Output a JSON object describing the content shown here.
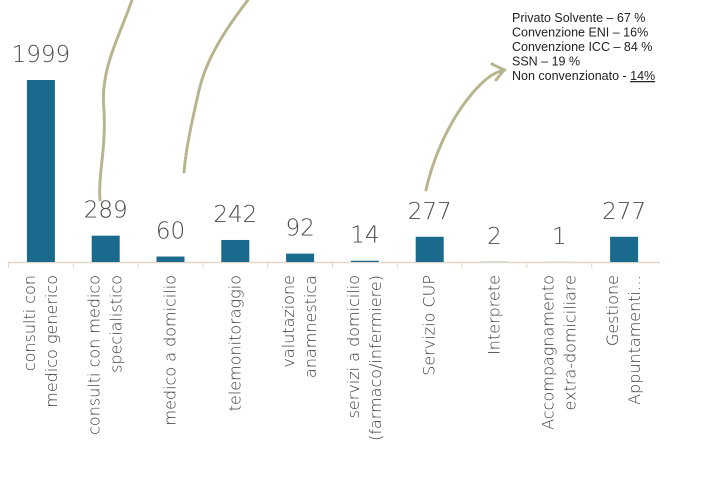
{
  "chart_data": {
    "type": "bar",
    "categories": [
      "consulti con\nmedico generico",
      "consulti con medico\nspecialistico",
      "medico a domicilio",
      "telemonitoraggio",
      "valutazione\nanamnestica",
      "servizi a domicilio\n(farmaco/infermiere)",
      "Servizio CUP",
      "Interprete",
      "Accompagnamento\nextra-domiciliare",
      "Gestione\nAppuntamenti…"
    ],
    "values": [
      1999,
      289,
      60,
      242,
      92,
      14,
      277,
      2,
      1,
      277
    ],
    "color": "#196a8c",
    "annotations": [
      [
        "Privato Solvente – 67 %"
      ],
      [
        "Convenzione ENI – 16%"
      ],
      [
        "Convenzione ICC – 84 %"
      ],
      [
        "SSN – 19 %"
      ],
      [
        "Non convenzionato - ",
        "14%"
      ]
    ]
  }
}
